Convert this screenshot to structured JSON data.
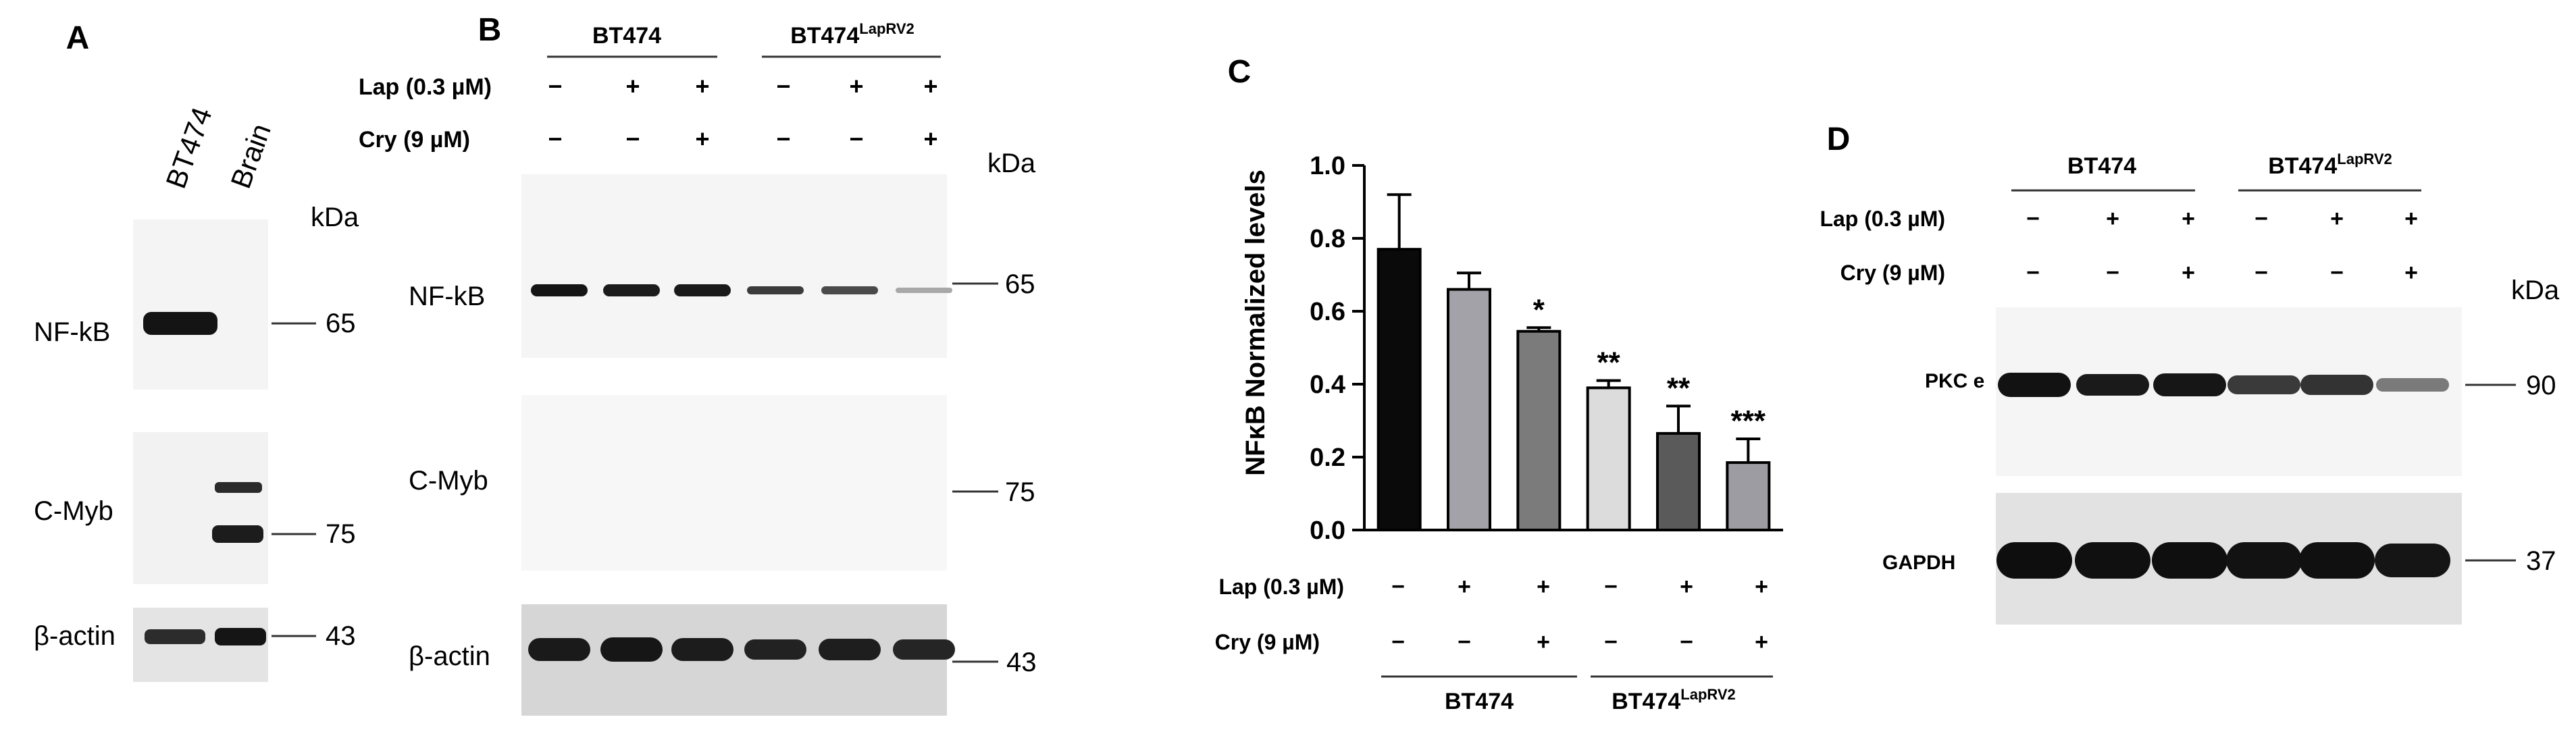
{
  "panels": {
    "A": {
      "letter": "A",
      "samples": [
        "BT474",
        "Brain"
      ],
      "kda_label": "kDa",
      "blots": [
        {
          "name": "NF-kB",
          "marker": "65"
        },
        {
          "name": "C-Myb",
          "marker": "75"
        },
        {
          "name": "β-actin",
          "marker": "43"
        }
      ]
    },
    "B": {
      "letter": "B",
      "groups": [
        {
          "name": "BT474",
          "sup": ""
        },
        {
          "name": "BT474",
          "sup": "LapRV2"
        }
      ],
      "treatments": [
        {
          "label": "Lap (0.3 µM)",
          "signs": [
            "−",
            "+",
            "+",
            "−",
            "+",
            "+"
          ]
        },
        {
          "label": "Cry (9 µM)",
          "signs": [
            "−",
            "−",
            "+",
            "−",
            "−",
            "+"
          ]
        }
      ],
      "kda_label": "kDa",
      "blots": [
        {
          "name": "NF-kB",
          "marker": "65"
        },
        {
          "name": "C-Myb",
          "marker": "75"
        },
        {
          "name": "β-actin",
          "marker": "43"
        }
      ]
    },
    "C": {
      "letter": "C",
      "treatments": [
        {
          "label": "Lap (0.3 µM)",
          "signs": [
            "−",
            "+",
            "+",
            "−",
            "+",
            "+"
          ]
        },
        {
          "label": "Cry (9 µM)",
          "signs": [
            "−",
            "−",
            "+",
            "−",
            "−",
            "+"
          ]
        }
      ],
      "groups": [
        {
          "name": "BT474",
          "sup": ""
        },
        {
          "name": "BT474",
          "sup": "LapRV2"
        }
      ]
    },
    "D": {
      "letter": "D",
      "groups": [
        {
          "name": "BT474",
          "sup": ""
        },
        {
          "name": "BT474",
          "sup": "LapRV2"
        }
      ],
      "treatments": [
        {
          "label": "Lap (0.3 µM)",
          "signs": [
            "−",
            "+",
            "+",
            "−",
            "+",
            "+"
          ]
        },
        {
          "label": "Cry (9 µM)",
          "signs": [
            "−",
            "−",
            "+",
            "−",
            "−",
            "+"
          ]
        }
      ],
      "kda_label": "kDa",
      "blots": [
        {
          "name": "PKC e",
          "marker": "90"
        },
        {
          "name": "GAPDH",
          "marker": "37"
        }
      ]
    }
  },
  "chart_data": {
    "type": "bar",
    "title": "",
    "ylabel": "NFκB Normalized levels",
    "xlabel": "",
    "ylim": [
      0,
      1.0
    ],
    "yticks": [
      0.0,
      0.2,
      0.4,
      0.6,
      0.8,
      1.0
    ],
    "categories": [
      "BT474 control",
      "BT474 Lap",
      "BT474 Lap+Cry",
      "BT474LapRV2 control",
      "BT474LapRV2 Lap",
      "BT474LapRV2 Lap+Cry"
    ],
    "values": [
      0.77,
      0.66,
      0.545,
      0.39,
      0.265,
      0.185
    ],
    "errors": [
      0.15,
      0.045,
      0.01,
      0.02,
      0.075,
      0.065
    ],
    "significance": [
      "",
      "",
      "*",
      "**",
      "**",
      "***"
    ],
    "bar_colors": [
      "#0a0a0a",
      "#a2a2a8",
      "#7b7b7b",
      "#dcdcdc",
      "#5a5a5a",
      "#9c9ca2"
    ]
  }
}
